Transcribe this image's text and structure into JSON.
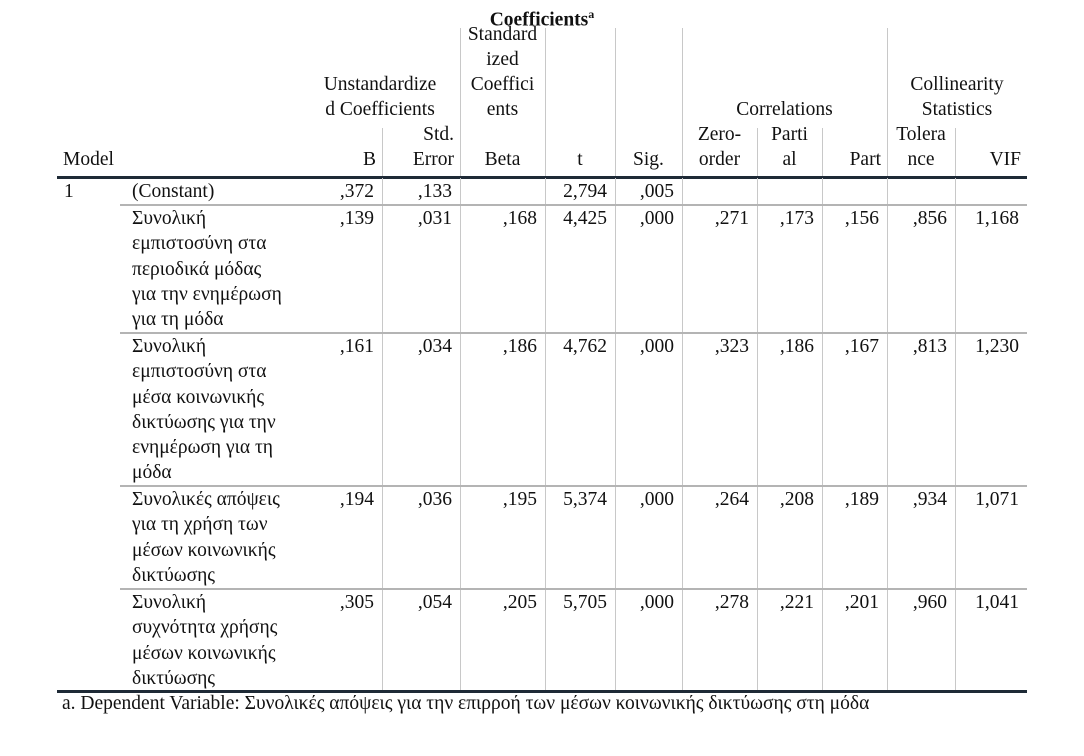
{
  "title": "Coefficients",
  "title_footnote_mark": "a",
  "header": {
    "model": "Model",
    "unstandardized": [
      "Unstandardize",
      "d Coefficients"
    ],
    "b": "B",
    "std_error": [
      "Std.",
      "Error"
    ],
    "standardized": [
      "Standard",
      "ized",
      "Coeffici",
      "ents"
    ],
    "beta": "Beta",
    "t": "t",
    "sig": "Sig.",
    "correlations": "Correlations",
    "zero_order": [
      "Zero-",
      "order"
    ],
    "partial": [
      "Parti",
      "al"
    ],
    "part": "Part",
    "collinearity": [
      "Collinearity",
      "Statistics"
    ],
    "tolerance": [
      "Tolera",
      "nce"
    ],
    "vif": "VIF"
  },
  "model_number": "1",
  "rows": [
    {
      "label": [
        "(Constant)"
      ],
      "b": ",372",
      "se": ",133",
      "beta": "",
      "t": "2,794",
      "sig": ",005",
      "zero": "",
      "partial": "",
      "part": "",
      "tol": "",
      "vif": ""
    },
    {
      "label": [
        "Συνολική",
        "εμπιστοσύνη στα",
        "περιοδικά μόδας",
        "για την ενημέρωση",
        "για τη μόδα"
      ],
      "b": ",139",
      "se": ",031",
      "beta": ",168",
      "t": "4,425",
      "sig": ",000",
      "zero": ",271",
      "partial": ",173",
      "part": ",156",
      "tol": ",856",
      "vif": "1,168"
    },
    {
      "label": [
        "Συνολική",
        "εμπιστοσύνη στα",
        "μέσα κοινωνικής",
        "δικτύωσης για την",
        "ενημέρωση για τη",
        "μόδα"
      ],
      "b": ",161",
      "se": ",034",
      "beta": ",186",
      "t": "4,762",
      "sig": ",000",
      "zero": ",323",
      "partial": ",186",
      "part": ",167",
      "tol": ",813",
      "vif": "1,230"
    },
    {
      "label": [
        "Συνολικές απόψεις",
        "για τη χρήση των",
        "μέσων κοινωνικής",
        "δικτύωσης"
      ],
      "b": ",194",
      "se": ",036",
      "beta": ",195",
      "t": "5,374",
      "sig": ",000",
      "zero": ",264",
      "partial": ",208",
      "part": ",189",
      "tol": ",934",
      "vif": "1,071"
    },
    {
      "label": [
        "Συνολική",
        "συχνότητα χρήσης",
        "μέσων κοινωνικής",
        "δικτύωσης"
      ],
      "b": ",305",
      "se": ",054",
      "beta": ",205",
      "t": "5,705",
      "sig": ",000",
      "zero": ",278",
      "partial": ",221",
      "part": ",201",
      "tol": ",960",
      "vif": "1,041"
    }
  ],
  "footnote": "a. Dependent Variable: Συνολικές απόψεις για την επιρροή των μέσων κοινωνικής δικτύωσης στη μόδα"
}
